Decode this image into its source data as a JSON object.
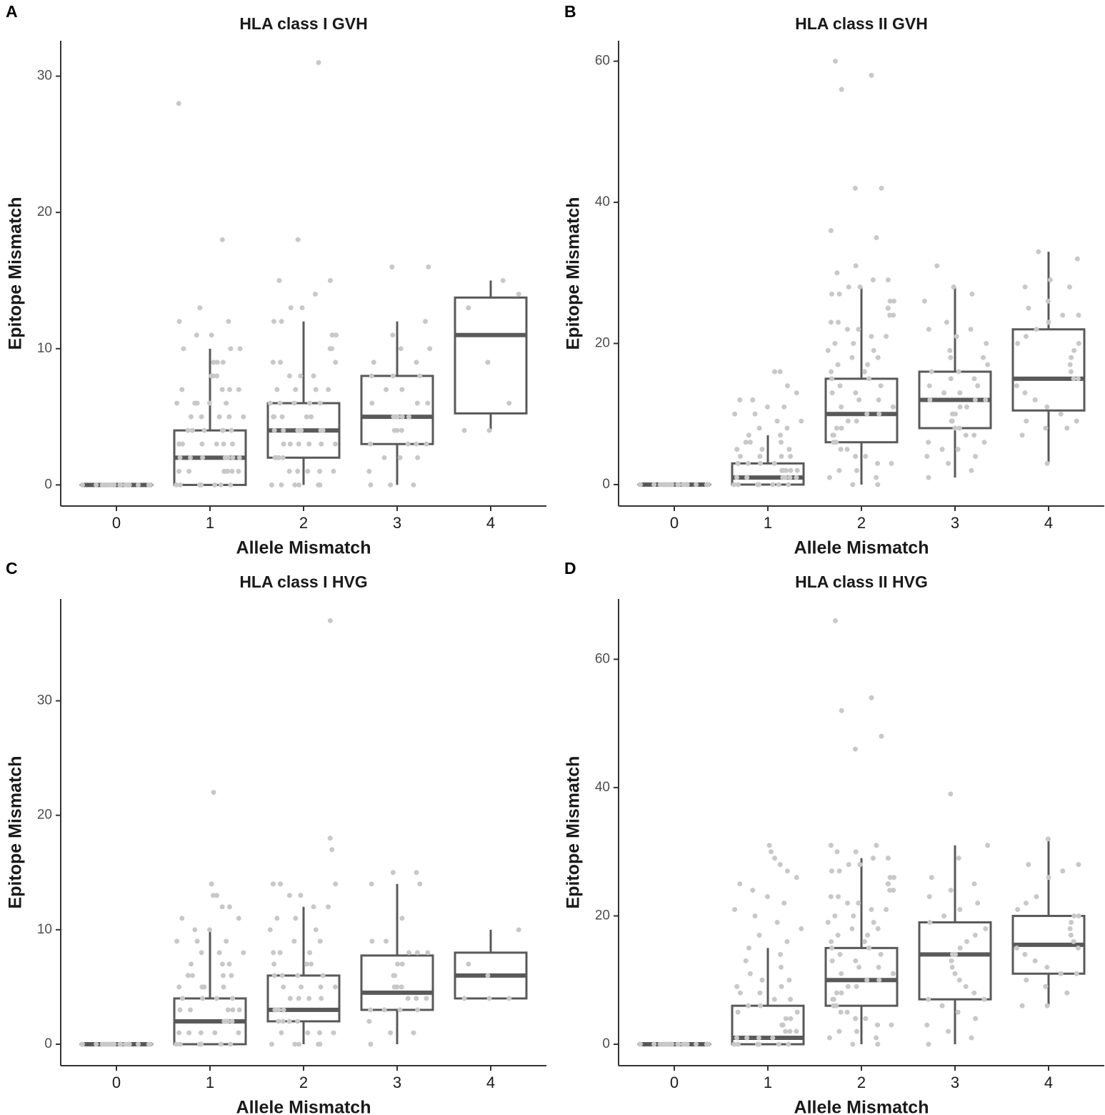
{
  "chart_data": [
    {
      "type": "box",
      "tag": "A",
      "title": "HLA class I GVH",
      "x_label": "Allele Mismatch",
      "y_label": "Epitope Mismatch",
      "categories": [
        "0",
        "1",
        "2",
        "3",
        "4"
      ],
      "ylim": [
        -1.55,
        32.6
      ],
      "yticks": [
        0,
        10,
        20,
        30
      ],
      "box_color": "#595959",
      "point_color": "#c8c8c8",
      "whisker_low": [
        0,
        0,
        0,
        0,
        4
      ],
      "q1": [
        0,
        0,
        2,
        3,
        5.25
      ],
      "median": [
        0,
        2,
        4,
        5,
        11
      ],
      "q3": [
        0,
        4,
        6,
        8,
        13.75
      ],
      "whisker_high": [
        0,
        10,
        12,
        12,
        15
      ],
      "points": [
        [
          0,
          0,
          0,
          0,
          0,
          0,
          0,
          0,
          0,
          0,
          0,
          0,
          0,
          0,
          0,
          0,
          0,
          0,
          0,
          0
        ],
        [
          0,
          0,
          0,
          0,
          0,
          0,
          0,
          0,
          1,
          1,
          1,
          1,
          1,
          1,
          1,
          2,
          2,
          2,
          2,
          2,
          2,
          2,
          3,
          3,
          3,
          3,
          3,
          3,
          4,
          4,
          4,
          4,
          4,
          4,
          5,
          5,
          5,
          5,
          5,
          6,
          6,
          6,
          6,
          6,
          7,
          7,
          7,
          7,
          8,
          8,
          8,
          8,
          9,
          9,
          9,
          10,
          10,
          10,
          11,
          11,
          12,
          12,
          13,
          18,
          28
        ],
        [
          0,
          0,
          0,
          0,
          0,
          0,
          1,
          1,
          1,
          1,
          1,
          2,
          2,
          2,
          2,
          2,
          2,
          3,
          3,
          3,
          3,
          3,
          3,
          4,
          4,
          4,
          4,
          4,
          4,
          5,
          5,
          5,
          5,
          5,
          6,
          6,
          6,
          6,
          6,
          7,
          7,
          7,
          7,
          8,
          8,
          8,
          9,
          9,
          9,
          10,
          10,
          10,
          11,
          11,
          12,
          12,
          13,
          13,
          14,
          15,
          15,
          18,
          31
        ],
        [
          0,
          0,
          0,
          1,
          2,
          2,
          2,
          3,
          3,
          3,
          3,
          4,
          4,
          4,
          5,
          5,
          5,
          5,
          5,
          6,
          6,
          6,
          7,
          7,
          8,
          8,
          8,
          9,
          9,
          10,
          10,
          11,
          12,
          16,
          16
        ],
        [
          4,
          4,
          6,
          9,
          13,
          14,
          15
        ]
      ]
    },
    {
      "type": "box",
      "tag": "B",
      "title": "HLA class II GVH",
      "x_label": "Allele Mismatch",
      "y_label": "Epitope Mismatch",
      "categories": [
        "0",
        "1",
        "2",
        "3",
        "4"
      ],
      "ylim": [
        -3.04,
        62.9
      ],
      "yticks": [
        0,
        20,
        40,
        60
      ],
      "box_color": "#595959",
      "point_color": "#c8c8c8",
      "whisker_low": [
        0,
        0,
        0,
        1,
        3
      ],
      "q1": [
        0,
        0,
        6,
        8,
        10.5
      ],
      "median": [
        0,
        1,
        10,
        12,
        15
      ],
      "q3": [
        0,
        3,
        15,
        16,
        22
      ],
      "whisker_high": [
        0,
        7,
        28,
        28,
        33
      ],
      "points": [
        [
          0,
          0,
          0,
          0,
          0,
          0,
          0,
          0,
          0,
          0,
          0,
          0,
          0,
          0,
          0,
          0,
          0,
          0,
          0,
          0
        ],
        [
          0,
          0,
          0,
          0,
          0,
          0,
          0,
          0,
          1,
          1,
          1,
          1,
          1,
          1,
          2,
          2,
          2,
          2,
          2,
          3,
          3,
          3,
          3,
          4,
          4,
          4,
          4,
          5,
          5,
          5,
          6,
          6,
          6,
          7,
          7,
          8,
          8,
          9,
          9,
          10,
          10,
          11,
          11,
          12,
          12,
          13,
          14,
          16,
          16
        ],
        [
          0,
          0,
          1,
          1,
          2,
          2,
          3,
          3,
          4,
          4,
          5,
          5,
          6,
          6,
          7,
          7,
          8,
          8,
          9,
          9,
          10,
          10,
          11,
          11,
          12,
          12,
          13,
          13,
          14,
          14,
          15,
          15,
          16,
          16,
          17,
          17,
          18,
          18,
          19,
          19,
          20,
          20,
          21,
          21,
          22,
          22,
          23,
          23,
          24,
          24,
          25,
          25,
          26,
          26,
          27,
          27,
          28,
          28,
          29,
          29,
          30,
          31,
          35,
          36,
          42,
          42,
          56,
          58,
          60
        ],
        [
          1,
          2,
          3,
          4,
          4,
          5,
          5,
          6,
          6,
          7,
          7,
          8,
          8,
          9,
          9,
          10,
          10,
          11,
          11,
          12,
          12,
          12,
          13,
          13,
          14,
          14,
          15,
          15,
          16,
          16,
          17,
          18,
          18,
          19,
          20,
          21,
          22,
          22,
          23,
          26,
          27,
          28,
          31
        ],
        [
          3,
          7,
          8,
          8,
          9,
          9,
          10,
          11,
          12,
          13,
          14,
          15,
          15,
          16,
          17,
          18,
          19,
          20,
          20,
          21,
          22,
          23,
          24,
          24,
          25,
          26,
          28,
          28,
          29,
          32,
          33
        ]
      ]
    },
    {
      "type": "box",
      "tag": "C",
      "title": "HLA class I HVG",
      "x_label": "Allele Mismatch",
      "y_label": "Epitope Mismatch",
      "categories": [
        "0",
        "1",
        "2",
        "3",
        "4"
      ],
      "ylim": [
        -1.875,
        38.9
      ],
      "yticks": [
        0,
        10,
        20,
        30
      ],
      "box_color": "#595959",
      "point_color": "#c8c8c8",
      "whisker_low": [
        0,
        0,
        0,
        0,
        4
      ],
      "q1": [
        0,
        0,
        2,
        3,
        4
      ],
      "median": [
        0,
        2,
        3,
        4.5,
        6
      ],
      "q3": [
        0,
        4,
        6,
        7.75,
        8
      ],
      "whisker_high": [
        0,
        10,
        12,
        14,
        10
      ],
      "points": [
        [
          0,
          0,
          0,
          0,
          0,
          0,
          0,
          0,
          0,
          0,
          0,
          0,
          0,
          0,
          0,
          0,
          0,
          0,
          0,
          0
        ],
        [
          0,
          0,
          0,
          0,
          0,
          0,
          1,
          1,
          1,
          1,
          1,
          2,
          2,
          2,
          2,
          2,
          3,
          3,
          3,
          3,
          3,
          4,
          4,
          4,
          4,
          5,
          5,
          5,
          5,
          6,
          6,
          6,
          6,
          7,
          7,
          7,
          8,
          8,
          8,
          9,
          9,
          9,
          10,
          10,
          11,
          11,
          12,
          12,
          13,
          13,
          14,
          14,
          22
        ],
        [
          0,
          0,
          0,
          0,
          0,
          1,
          1,
          1,
          1,
          2,
          2,
          2,
          2,
          3,
          3,
          3,
          3,
          3,
          4,
          4,
          4,
          4,
          5,
          5,
          5,
          5,
          6,
          6,
          6,
          6,
          7,
          7,
          7,
          8,
          8,
          8,
          9,
          9,
          10,
          10,
          11,
          11,
          12,
          12,
          13,
          13,
          14,
          14,
          14,
          17,
          18,
          37
        ],
        [
          0,
          1,
          1,
          2,
          3,
          3,
          3,
          3,
          4,
          4,
          4,
          5,
          5,
          5,
          6,
          6,
          7,
          7,
          8,
          8,
          8,
          9,
          9,
          11,
          14,
          14,
          15,
          15
        ],
        [
          4,
          4,
          4,
          6,
          7,
          10
        ]
      ]
    },
    {
      "type": "box",
      "tag": "D",
      "title": "HLA class II HVG",
      "x_label": "Allele Mismatch",
      "y_label": "Epitope Mismatch",
      "categories": [
        "0",
        "1",
        "2",
        "3",
        "4"
      ],
      "ylim": [
        -3.34,
        69.4
      ],
      "yticks": [
        0,
        20,
        40,
        60
      ],
      "box_color": "#595959",
      "point_color": "#c8c8c8",
      "whisker_low": [
        0,
        0,
        0,
        0,
        6
      ],
      "q1": [
        0,
        0,
        6,
        7,
        11
      ],
      "median": [
        0,
        1,
        10,
        14,
        15.5
      ],
      "q3": [
        0,
        6,
        15,
        19,
        20
      ],
      "whisker_high": [
        0,
        15,
        29,
        31,
        32
      ],
      "points": [
        [
          0,
          0,
          0,
          0,
          0,
          0,
          0,
          0,
          0,
          0,
          0,
          0,
          0,
          0,
          0,
          0,
          0,
          0,
          0,
          0
        ],
        [
          0,
          0,
          0,
          0,
          0,
          0,
          1,
          1,
          1,
          1,
          2,
          2,
          2,
          3,
          3,
          3,
          4,
          4,
          5,
          5,
          6,
          6,
          7,
          7,
          8,
          8,
          9,
          9,
          10,
          10,
          11,
          12,
          13,
          14,
          15,
          16,
          17,
          18,
          19,
          20,
          21,
          22,
          23,
          24,
          25,
          26,
          27,
          28,
          29,
          30,
          31
        ],
        [
          0,
          0,
          1,
          1,
          2,
          2,
          3,
          3,
          4,
          4,
          5,
          5,
          6,
          6,
          7,
          7,
          8,
          8,
          9,
          9,
          10,
          10,
          11,
          11,
          12,
          12,
          13,
          13,
          14,
          14,
          15,
          15,
          16,
          16,
          17,
          17,
          18,
          18,
          19,
          19,
          20,
          20,
          21,
          21,
          22,
          22,
          23,
          23,
          24,
          24,
          25,
          25,
          26,
          26,
          27,
          27,
          28,
          28,
          29,
          29,
          30,
          30,
          31,
          31,
          46,
          48,
          52,
          54,
          66
        ],
        [
          0,
          1,
          2,
          3,
          4,
          5,
          6,
          7,
          7,
          8,
          9,
          10,
          11,
          12,
          13,
          14,
          14,
          15,
          16,
          17,
          18,
          19,
          20,
          21,
          22,
          23,
          24,
          25,
          26,
          29,
          31,
          39
        ],
        [
          6,
          6,
          8,
          9,
          10,
          11,
          11,
          12,
          13,
          14,
          15,
          15,
          16,
          17,
          18,
          19,
          20,
          20,
          21,
          22,
          23,
          26,
          27,
          28,
          28,
          32
        ]
      ]
    }
  ]
}
